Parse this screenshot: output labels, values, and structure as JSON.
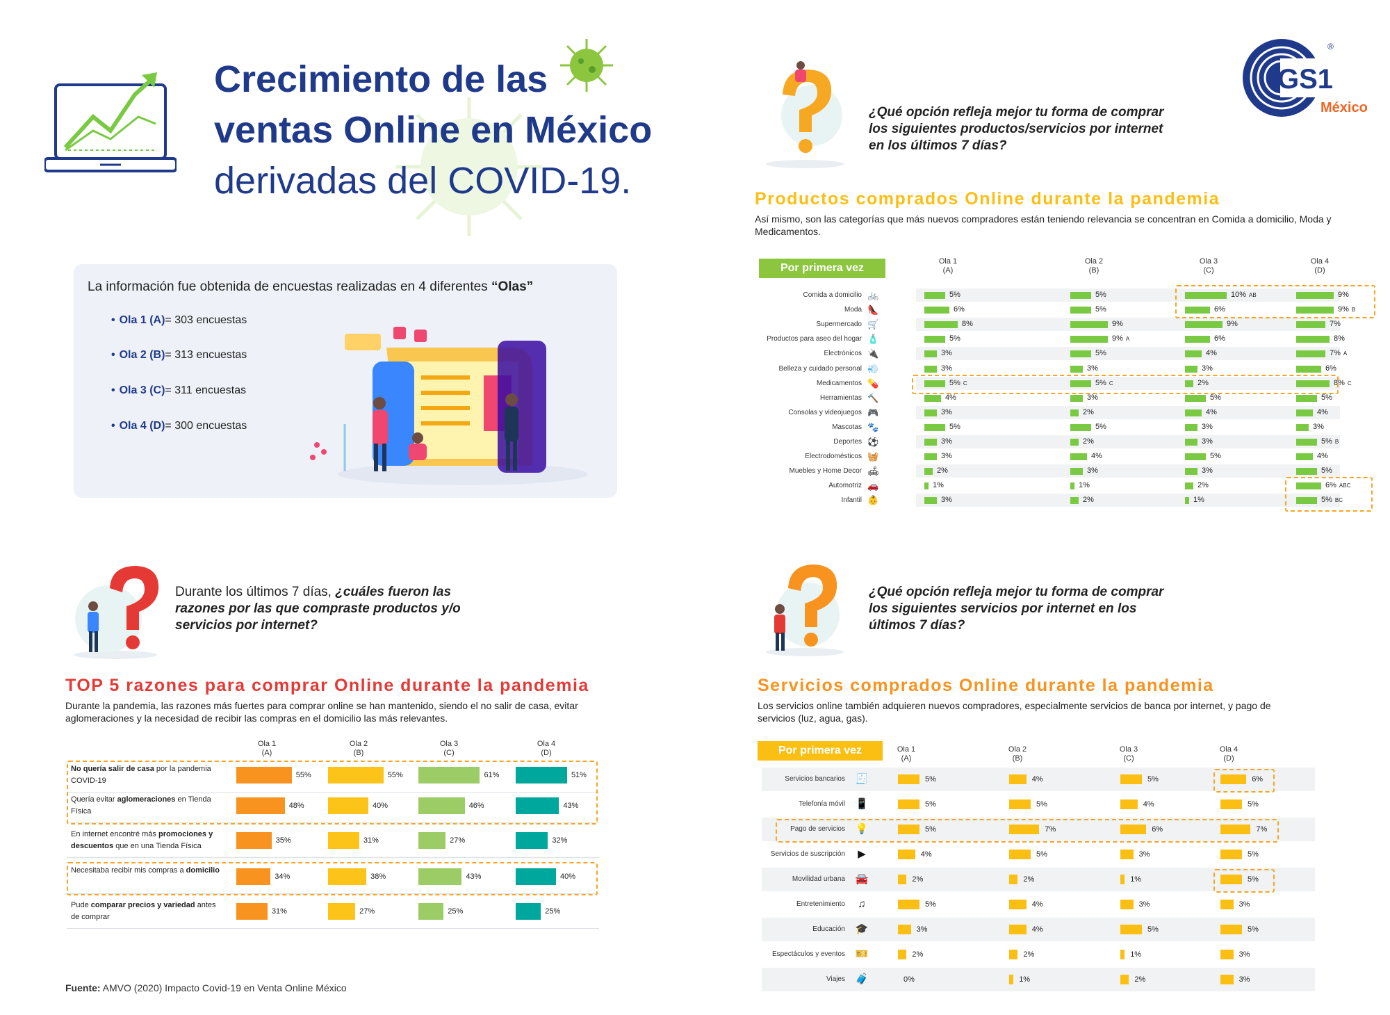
{
  "colors": {
    "navy": "#1f3a8a",
    "green": "#7ac943",
    "yellow": "#fbbf14",
    "orange": "#f7931e",
    "red": "#e53935",
    "teal": "#00a79d",
    "lightgreen": "#8cc63f",
    "gold": "#fcc419"
  },
  "header": {
    "title_lines": [
      "Crecimiento de las",
      "ventas Online en México",
      "derivadas del COVID-19."
    ],
    "logo_text": "GS1",
    "logo_country": "México"
  },
  "olas": {
    "intro": "La información fue obtenida de encuestas realizadas en 4 diferentes",
    "intro_bold": "“Olas”",
    "items": [
      {
        "label": "Ola 1 (A)",
        "value": "= 303 encuestas"
      },
      {
        "label": "Ola 2 (B)",
        "value": "= 313 encuestas"
      },
      {
        "label": "Ola 3 (C)",
        "value": "= 311 encuestas"
      },
      {
        "label": "Ola 4 (D)",
        "value": "= 300 encuestas"
      }
    ]
  },
  "products": {
    "question": "¿Qué opción refleja mejor tu forma de comprar los siguientes productos/servicios por internet en los últimos 7 días?",
    "title": "Productos comprados Online durante la pandemia",
    "description": "Así mismo, son las categorías que más nuevos compradores están teniendo relevancia se concentran en Comida a domicilio, Moda y Medicamentos.",
    "pill": "Por primera vez",
    "columns": [
      {
        "line1": "Ola 1",
        "line2": "(A)"
      },
      {
        "line1": "Ola 2",
        "line2": "(B)"
      },
      {
        "line1": "Ola 3",
        "line2": "(C)"
      },
      {
        "line1": "Ola 4",
        "line2": "(D)"
      }
    ],
    "rows": [
      {
        "label": "Comida a domicilio",
        "icon": "bike-delivery-icon",
        "glyph": "🚲",
        "values": [
          5,
          5,
          10,
          9
        ],
        "sig": [
          "",
          "",
          "AB",
          ""
        ]
      },
      {
        "label": "Moda",
        "icon": "high-heel-icon",
        "glyph": "👠",
        "values": [
          6,
          5,
          6,
          9
        ],
        "sig": [
          "",
          "",
          "",
          "B"
        ]
      },
      {
        "label": "Supermercado",
        "icon": "cart-icon",
        "glyph": "🛒",
        "values": [
          8,
          9,
          9,
          7
        ],
        "sig": [
          "",
          "",
          "",
          ""
        ]
      },
      {
        "label": "Productos para aseo del hogar",
        "icon": "spray-bottle-icon",
        "glyph": "🧴",
        "values": [
          5,
          9,
          6,
          8
        ],
        "sig": [
          "",
          "A",
          "",
          ""
        ]
      },
      {
        "label": "Electrónicos",
        "icon": "electronics-icon",
        "glyph": "🔌",
        "values": [
          3,
          5,
          4,
          7
        ],
        "sig": [
          "",
          "",
          "",
          "A"
        ]
      },
      {
        "label": "Belleza y cuidado personal",
        "icon": "hair-dryer-icon",
        "glyph": "💨",
        "values": [
          3,
          3,
          3,
          6
        ],
        "sig": [
          "",
          "",
          "",
          ""
        ]
      },
      {
        "label": "Medicamentos",
        "icon": "pills-icon",
        "glyph": "💊",
        "values": [
          5,
          5,
          2,
          8
        ],
        "sig": [
          "C",
          "C",
          "",
          "C"
        ]
      },
      {
        "label": "Herramientas",
        "icon": "hammer-icon",
        "glyph": "🔨",
        "values": [
          4,
          3,
          5,
          5
        ],
        "sig": [
          "",
          "",
          "",
          ""
        ]
      },
      {
        "label": "Consolas y videojuegos",
        "icon": "gamepad-icon",
        "glyph": "🎮",
        "values": [
          3,
          2,
          4,
          4
        ],
        "sig": [
          "",
          "",
          "",
          ""
        ]
      },
      {
        "label": "Mascotas",
        "icon": "paw-icon",
        "glyph": "🐾",
        "values": [
          5,
          5,
          3,
          3
        ],
        "sig": [
          "",
          "",
          "",
          ""
        ]
      },
      {
        "label": "Deportes",
        "icon": "ball-icon",
        "glyph": "⚽",
        "values": [
          3,
          2,
          3,
          5
        ],
        "sig": [
          "",
          "",
          "",
          "B"
        ]
      },
      {
        "label": "Electrodomésticos",
        "icon": "washing-machine-icon",
        "glyph": "🧺",
        "values": [
          3,
          4,
          5,
          4
        ],
        "sig": [
          "",
          "",
          "",
          ""
        ]
      },
      {
        "label": "Muebles y Home Decor",
        "icon": "armchair-icon",
        "glyph": "🛋",
        "values": [
          2,
          3,
          3,
          5
        ],
        "sig": [
          "",
          "",
          "",
          ""
        ]
      },
      {
        "label": "Automotriz",
        "icon": "car-icon",
        "glyph": "🚗",
        "values": [
          1,
          1,
          2,
          6
        ],
        "sig": [
          "",
          "",
          "",
          "ABC"
        ]
      },
      {
        "label": "Infantil",
        "icon": "baby-bodysuit-icon",
        "glyph": "👶",
        "values": [
          3,
          2,
          1,
          5
        ],
        "sig": [
          "",
          "",
          "",
          "BC"
        ]
      }
    ]
  },
  "reasons": {
    "question_plain": "Durante los últimos 7 días,",
    "question_italic": "¿cuáles fueron las razones por las que compraste productos y/o servicios por internet?",
    "title": "TOP 5 razones para comprar Online durante la pandemia",
    "description": "Durante la pandemia, las razones más fuertes para comprar online se han mantenido, siendo el no salir de casa, evitar aglomeraciones y la necesidad de recibir las compras en el domicilio las más relevantes.",
    "columns": [
      {
        "line1": "Ola 1",
        "line2": "(A)"
      },
      {
        "line1": "Ola 2",
        "line2": "(B)"
      },
      {
        "line1": "Ola 3",
        "line2": "(C)"
      },
      {
        "line1": "Ola 4",
        "line2": "(D)"
      }
    ],
    "rows": [
      {
        "parts": [
          {
            "b": true,
            "t": "No quería salir de casa"
          },
          {
            "b": false,
            "t": " por la pandemia COVID-19"
          }
        ],
        "values": [
          55,
          55,
          61,
          51
        ]
      },
      {
        "parts": [
          {
            "b": false,
            "t": "Quería evitar "
          },
          {
            "b": true,
            "t": "aglomeraciones"
          },
          {
            "b": false,
            "t": " en Tienda Física"
          }
        ],
        "values": [
          48,
          40,
          46,
          43
        ]
      },
      {
        "parts": [
          {
            "b": false,
            "t": "En internet encontré más "
          },
          {
            "b": true,
            "t": "promociones y descuentos"
          },
          {
            "b": false,
            "t": " que en una Tienda Física"
          }
        ],
        "values": [
          35,
          31,
          27,
          32
        ]
      },
      {
        "parts": [
          {
            "b": false,
            "t": "Necesitaba recibir mis compras a "
          },
          {
            "b": true,
            "t": "domicilio"
          }
        ],
        "values": [
          34,
          38,
          43,
          40
        ]
      },
      {
        "parts": [
          {
            "b": false,
            "t": "Pude "
          },
          {
            "b": true,
            "t": "comparar precios y variedad"
          },
          {
            "b": false,
            "t": " antes de comprar"
          }
        ],
        "values": [
          31,
          27,
          25,
          25
        ]
      }
    ]
  },
  "services": {
    "question": "¿Qué opción refleja mejor tu forma de comprar los siguientes servicios por internet en los últimos 7 días?",
    "title": "Servicios comprados Online durante la pandemia",
    "description": "Los servicios online también adquieren nuevos compradores, especialmente servicios de banca por internet, y pago de servicios (luz, agua, gas).",
    "pill": "Por primera vez",
    "columns": [
      {
        "line1": "Ola 1",
        "line2": "(A)"
      },
      {
        "line1": "Ola 2",
        "line2": "(B)"
      },
      {
        "line1": "Ola 3",
        "line2": "(C)"
      },
      {
        "line1": "Ola 4",
        "line2": "(D)"
      }
    ],
    "rows": [
      {
        "label": "Servicios bancarios",
        "icon": "bank-receipt-icon",
        "glyph": "🧾",
        "values": [
          5,
          4,
          5,
          6
        ]
      },
      {
        "label": "Telefonía móvil",
        "icon": "mobile-phone-icon",
        "glyph": "📱",
        "values": [
          5,
          5,
          4,
          5
        ]
      },
      {
        "label": "Pago de servicios",
        "icon": "utilities-icon",
        "glyph": "💡",
        "values": [
          5,
          7,
          6,
          7
        ]
      },
      {
        "label": "Servicios de suscripción",
        "icon": "play-icon",
        "glyph": "▶",
        "values": [
          4,
          5,
          3,
          5
        ]
      },
      {
        "label": "Movilidad urbana",
        "icon": "car-front-icon",
        "glyph": "🚘",
        "values": [
          2,
          2,
          1,
          5
        ]
      },
      {
        "label": "Entretenimiento",
        "icon": "music-note-icon",
        "glyph": "♫",
        "values": [
          5,
          4,
          3,
          3
        ]
      },
      {
        "label": "Educación",
        "icon": "graduation-cap-icon",
        "glyph": "🎓",
        "values": [
          3,
          4,
          5,
          5
        ]
      },
      {
        "label": "Espectáculos y eventos",
        "icon": "ticket-icon",
        "glyph": "🎫",
        "values": [
          2,
          2,
          1,
          3
        ]
      },
      {
        "label": "Viajes",
        "icon": "suitcase-icon",
        "glyph": "🧳",
        "values": [
          0,
          1,
          2,
          3
        ]
      }
    ]
  },
  "source": {
    "label": "Fuente:",
    "text": " AMVO (2020) Impacto Covid-19 en Venta Online México"
  }
}
